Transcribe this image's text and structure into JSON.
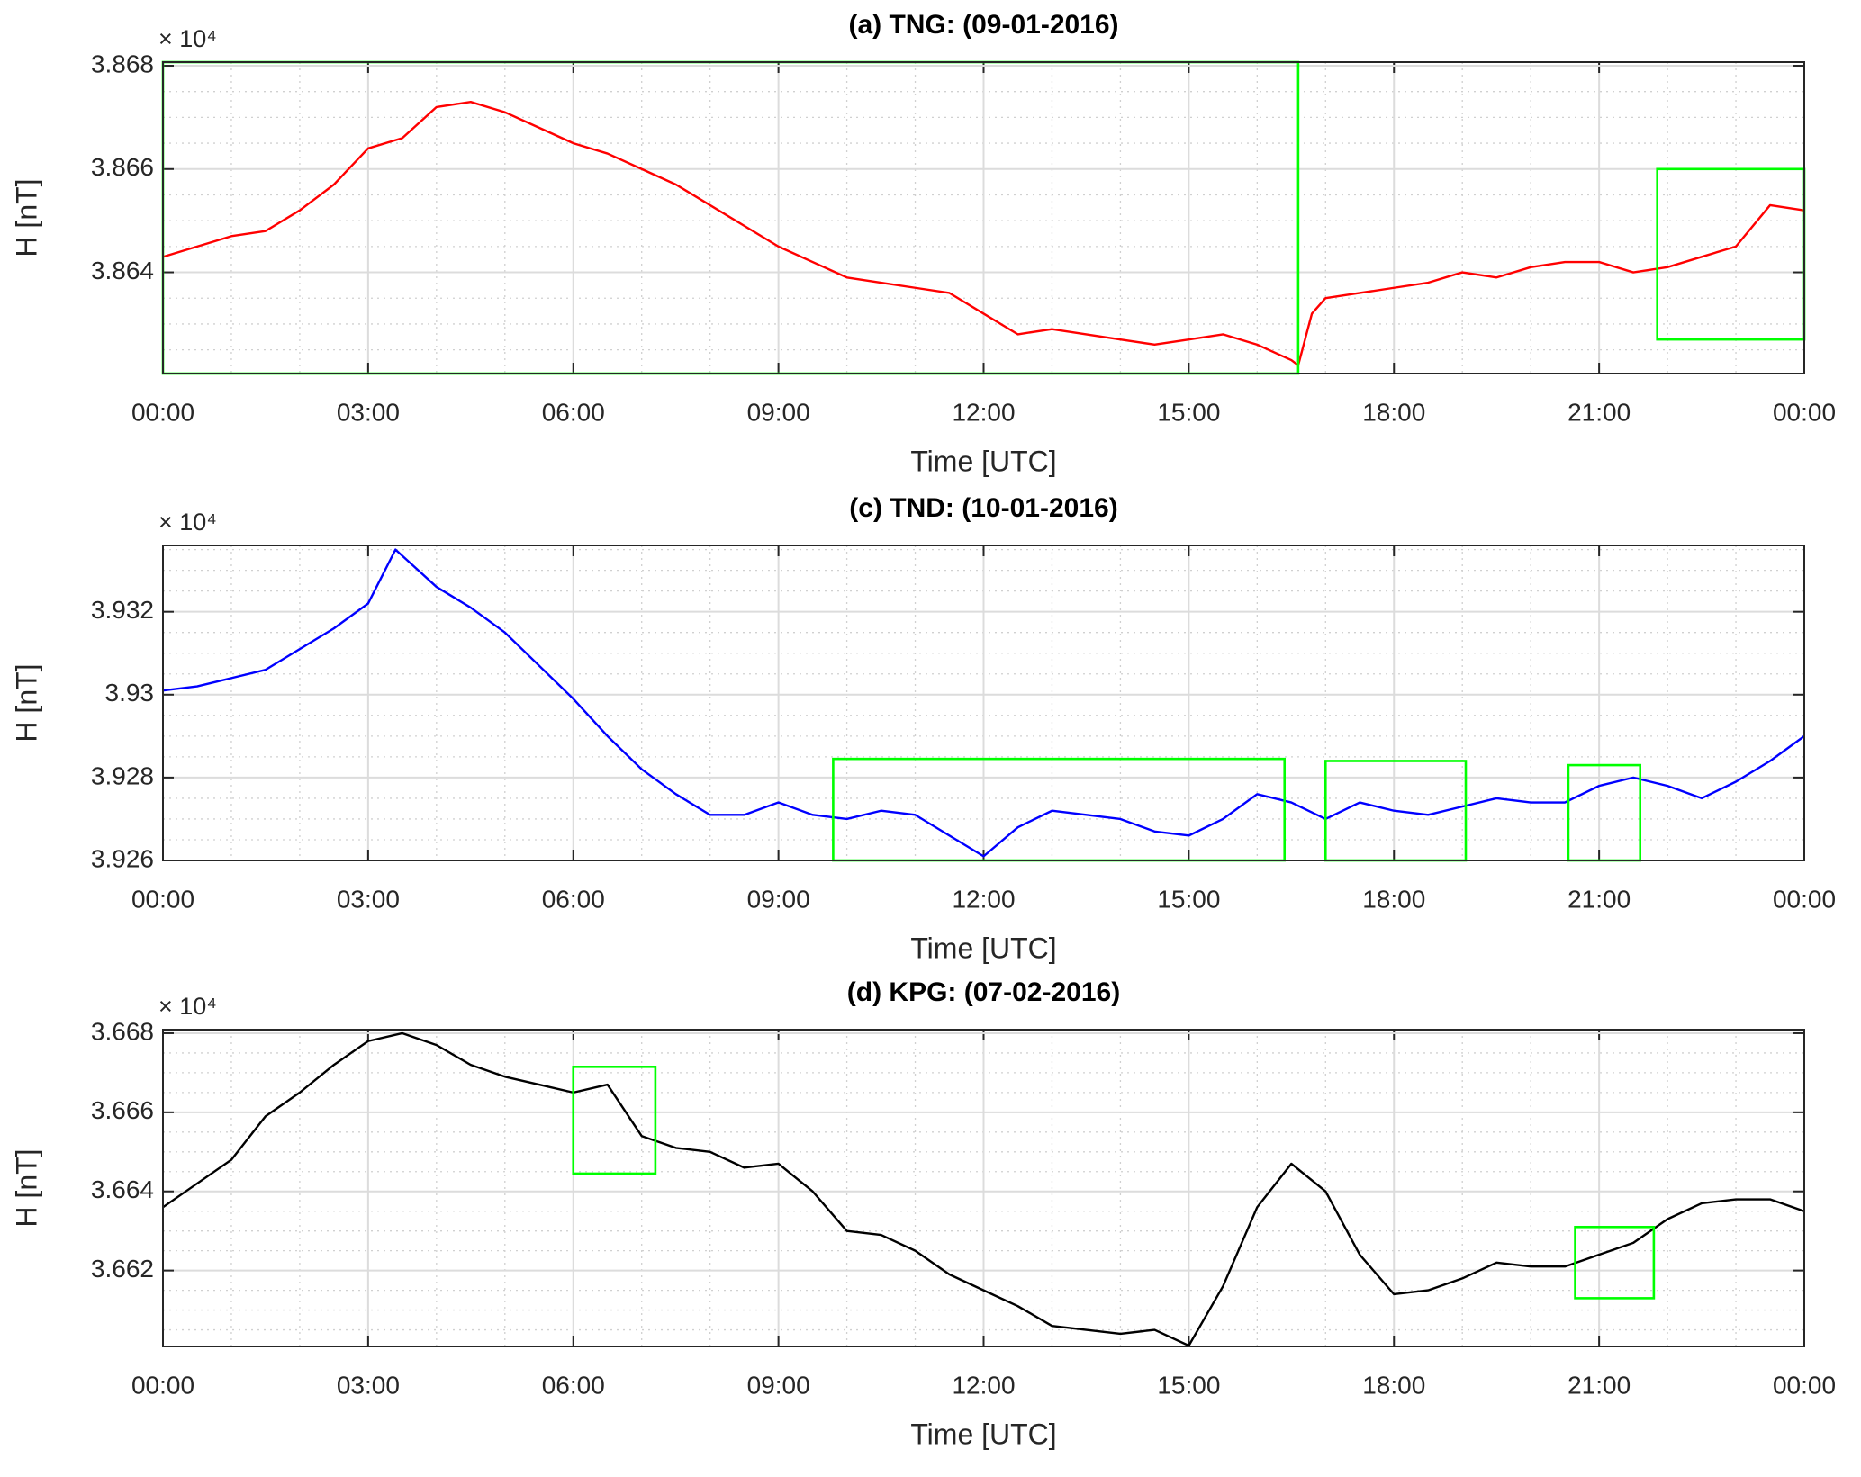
{
  "chart_data": [
    {
      "type": "line",
      "title": "(a) TNG: (09-01-2016)",
      "xlabel": "Time [UTC]",
      "ylabel": "H [nT]",
      "y_multiplier": "× 10⁴",
      "color": "#ff0000",
      "box_color": "#00ff00",
      "grid": true,
      "minor_grid": {
        "x": 1,
        "y": 5
      },
      "xlim": [
        0,
        24
      ],
      "ylim": [
        38620.4,
        38680.7
      ],
      "xticks": [
        {
          "value": 0,
          "label": "00:00"
        },
        {
          "value": 3,
          "label": "03:00"
        },
        {
          "value": 6,
          "label": "06:00"
        },
        {
          "value": 9,
          "label": "09:00"
        },
        {
          "value": 12,
          "label": "12:00"
        },
        {
          "value": 15,
          "label": "15:00"
        },
        {
          "value": 18,
          "label": "18:00"
        },
        {
          "value": 21,
          "label": "21:00"
        },
        {
          "value": 24,
          "label": "00:00"
        }
      ],
      "yticks": [
        {
          "value": 38640,
          "label": "3.864"
        },
        {
          "value": 38660,
          "label": "3.866"
        },
        {
          "value": 38680,
          "label": "3.868"
        }
      ],
      "x": [
        0,
        0.5,
        1,
        1.5,
        2,
        2.5,
        3,
        3.5,
        4,
        4.5,
        5,
        5.5,
        6,
        6.5,
        7,
        7.5,
        8,
        8.5,
        9,
        9.5,
        10,
        10.5,
        11,
        11.5,
        12,
        12.5,
        13,
        13.5,
        14,
        14.5,
        15,
        15.5,
        16,
        16.5,
        16.6,
        16.8,
        17,
        17.5,
        18,
        18.5,
        19,
        19.5,
        20,
        20.5,
        21,
        21.5,
        22,
        22.5,
        23,
        23.5,
        24
      ],
      "values": [
        38643,
        38645,
        38647,
        38648,
        38652,
        38657,
        38664,
        38666,
        38672,
        38673,
        38671,
        38668,
        38665,
        38663,
        38660,
        38657,
        38653,
        38649,
        38645,
        38642,
        38639,
        38638,
        38637,
        38636,
        38632,
        38628,
        38629,
        38628,
        38627,
        38626,
        38627,
        38628,
        38626,
        38623,
        38622,
        38632,
        38635,
        38636,
        38637,
        38638,
        38640,
        38639,
        38641,
        38642,
        38642,
        38640,
        38641,
        38643,
        38645,
        38653,
        38652
      ],
      "boxes": [
        {
          "x": [
            0,
            16.6
          ],
          "y": [
            38620.4,
            38680.7
          ]
        },
        {
          "x": [
            21.85,
            24
          ],
          "y": [
            38627,
            38660
          ]
        }
      ]
    },
    {
      "type": "line",
      "title": "(c) TND: (10-01-2016)",
      "xlabel": "Time [UTC]",
      "ylabel": "H [nT]",
      "y_multiplier": "× 10⁴",
      "color": "#0000ff",
      "box_color": "#00ff00",
      "grid": true,
      "minor_grid": {
        "x": 1,
        "y": 5
      },
      "xlim": [
        0,
        24
      ],
      "ylim": [
        39260,
        39336
      ],
      "xticks": [
        {
          "value": 0,
          "label": "00:00"
        },
        {
          "value": 3,
          "label": "03:00"
        },
        {
          "value": 6,
          "label": "06:00"
        },
        {
          "value": 9,
          "label": "09:00"
        },
        {
          "value": 12,
          "label": "12:00"
        },
        {
          "value": 15,
          "label": "15:00"
        },
        {
          "value": 18,
          "label": "18:00"
        },
        {
          "value": 21,
          "label": "21:00"
        },
        {
          "value": 24,
          "label": "00:00"
        }
      ],
      "yticks": [
        {
          "value": 39260,
          "label": "3.926"
        },
        {
          "value": 39280,
          "label": "3.928"
        },
        {
          "value": 39300,
          "label": "3.93"
        },
        {
          "value": 39320,
          "label": "3.932"
        }
      ],
      "x": [
        0,
        0.5,
        1,
        1.5,
        2,
        2.5,
        3,
        3.4,
        4,
        4.5,
        5,
        5.5,
        6,
        6.5,
        7,
        7.5,
        8,
        8.5,
        9,
        9.5,
        10,
        10.5,
        11,
        11.5,
        12,
        12.5,
        13,
        13.5,
        14,
        14.5,
        15,
        15.5,
        16,
        16.5,
        17,
        17.5,
        18,
        18.5,
        19,
        19.5,
        20,
        20.5,
        21,
        21.5,
        22,
        22.5,
        23,
        23.5,
        24
      ],
      "values": [
        39301,
        39302,
        39304,
        39306,
        39311,
        39316,
        39322,
        39335,
        39326,
        39321,
        39315,
        39307,
        39299,
        39290,
        39282,
        39276,
        39271,
        39271,
        39274,
        39271,
        39270,
        39272,
        39271,
        39266,
        39261,
        39268,
        39272,
        39271,
        39270,
        39267,
        39266,
        39270,
        39276,
        39274,
        39270,
        39274,
        39272,
        39271,
        39273,
        39275,
        39274,
        39274,
        39278,
        39280,
        39278,
        39275,
        39279,
        39284,
        39290
      ],
      "boxes": [
        {
          "x": [
            9.8,
            16.4
          ],
          "y": [
            39260,
            39284.5
          ]
        },
        {
          "x": [
            17,
            19.05
          ],
          "y": [
            39260,
            39284
          ]
        },
        {
          "x": [
            20.55,
            21.6
          ],
          "y": [
            39260,
            39283
          ]
        }
      ]
    },
    {
      "type": "line",
      "title": "(d) KPG: (07-02-2016)",
      "xlabel": "Time [UTC]",
      "ylabel": "H [nT]",
      "y_multiplier": "× 10⁴",
      "color": "#000000",
      "box_color": "#00ff00",
      "grid": true,
      "minor_grid": {
        "x": 1,
        "y": 5
      },
      "xlim": [
        0,
        24
      ],
      "ylim": [
        36600.8,
        36680.9
      ],
      "xticks": [
        {
          "value": 0,
          "label": "00:00"
        },
        {
          "value": 3,
          "label": "03:00"
        },
        {
          "value": 6,
          "label": "06:00"
        },
        {
          "value": 9,
          "label": "09:00"
        },
        {
          "value": 12,
          "label": "12:00"
        },
        {
          "value": 15,
          "label": "15:00"
        },
        {
          "value": 18,
          "label": "18:00"
        },
        {
          "value": 21,
          "label": "21:00"
        },
        {
          "value": 24,
          "label": "00:00"
        }
      ],
      "yticks": [
        {
          "value": 36620,
          "label": "3.662"
        },
        {
          "value": 36640,
          "label": "3.664"
        },
        {
          "value": 36660,
          "label": "3.666"
        },
        {
          "value": 36680,
          "label": "3.668"
        }
      ],
      "x": [
        0,
        0.5,
        1,
        1.5,
        2,
        2.5,
        3,
        3.5,
        4,
        4.5,
        5,
        5.5,
        6,
        6.5,
        7,
        7.5,
        8,
        8.5,
        9,
        9.5,
        10,
        10.5,
        11,
        11.5,
        12,
        12.5,
        13,
        13.5,
        14,
        14.5,
        15,
        15.5,
        16,
        16.5,
        17,
        17.5,
        18,
        18.5,
        19,
        19.5,
        20,
        20.5,
        21,
        21.5,
        22,
        22.5,
        23,
        23.5,
        24
      ],
      "values": [
        36636,
        36642,
        36648,
        36659,
        36665,
        36672,
        36678,
        36680,
        36677,
        36672,
        36669,
        36667,
        36665,
        36667,
        36654,
        36651,
        36650,
        36646,
        36647,
        36640,
        36630,
        36629,
        36625,
        36619,
        36615,
        36611,
        36606,
        36605,
        36604,
        36605,
        36601,
        36616,
        36636,
        36647,
        36640,
        36624,
        36614,
        36615,
        36618,
        36622,
        36621,
        36621,
        36624,
        36627,
        36633,
        36637,
        36638,
        36638,
        36635
      ],
      "boxes": [
        {
          "x": [
            6,
            7.2
          ],
          "y": [
            36644.5,
            36671.5
          ]
        },
        {
          "x": [
            20.65,
            21.8
          ],
          "y": [
            36613,
            36631
          ]
        }
      ]
    }
  ]
}
